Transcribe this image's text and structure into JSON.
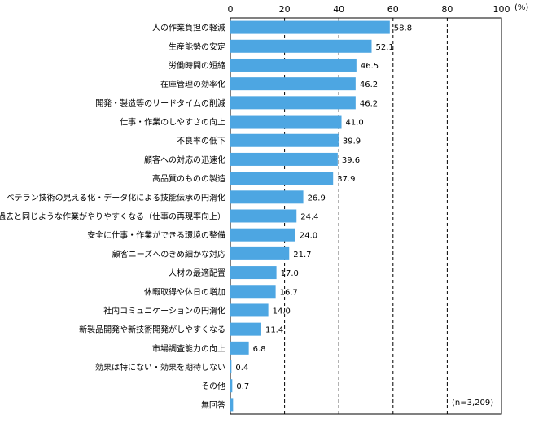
{
  "chart_data": {
    "type": "bar",
    "orientation": "horizontal",
    "categories": [
      "人の作業負担の軽減",
      "生産能勢の安定",
      "労働時間の短縮",
      "在庫管理の効率化",
      "開発・製造等のリードタイムの削減",
      "仕事・作業のしやすさの向上",
      "不良率の低下",
      "顧客への対応の迅速化",
      "高品質のものの製造",
      "ベテラン技術の見える化・データ化による技能伝承の円滑化",
      "過去と同じような作業がやりやすくなる（仕事の再現率向上）",
      "安全に仕事・作業ができる環境の整備",
      "顧客ニーズへのきめ細かな対応",
      "人材の最適配置",
      "休暇取得や休日の増加",
      "社内コミュニケーションの円滑化",
      "新製品開発や新技術開発がしやすくなる",
      "市場調査能力の向上",
      "効果は特にない・効果を期待しない",
      "その他",
      "無回答"
    ],
    "values": [
      58.8,
      52.1,
      46.5,
      46.2,
      46.2,
      41.0,
      39.9,
      39.6,
      37.9,
      26.9,
      24.4,
      24.0,
      21.7,
      17.0,
      16.7,
      14.0,
      11.4,
      6.8,
      0.4,
      0.7,
      1.0
    ],
    "value_labels": [
      "58.8",
      "52.1",
      "46.5",
      "46.2",
      "46.2",
      "41.0",
      "39.9",
      "39.6",
      "37.9",
      "26.9",
      "24.4",
      "24.0",
      "21.7",
      "17.0",
      "16.7",
      "14.0",
      "11.4",
      "6.8",
      "0.4",
      "0.7",
      ""
    ],
    "xlim": [
      0,
      100
    ],
    "xticks": [
      "0",
      "20",
      "40",
      "60",
      "80",
      "100"
    ],
    "unit": "(%)",
    "note": "(n=3,209)",
    "grid": "dashed vertical at 20, 40, 60, 80",
    "bar_color": "#4da6e2"
  }
}
